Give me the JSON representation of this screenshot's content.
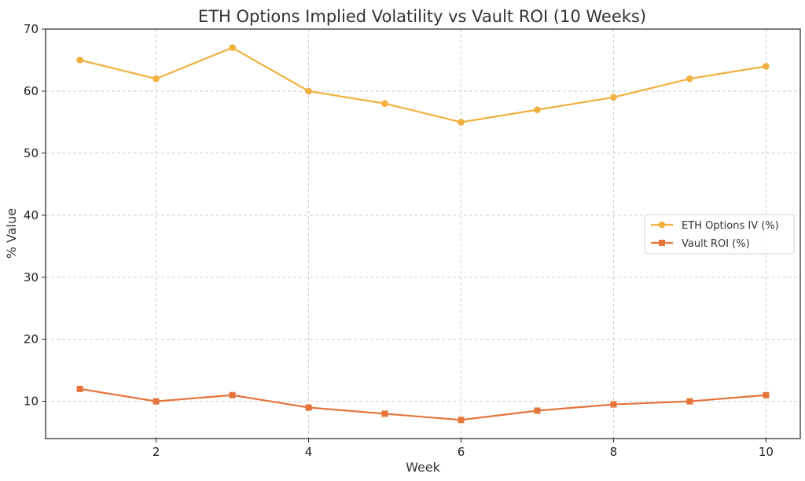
{
  "chart_data": {
    "type": "line",
    "title": "ETH Options Implied Volatility vs Vault ROI (10 Weeks)",
    "xlabel": "Week",
    "ylabel": "% Value",
    "x": [
      1,
      2,
      3,
      4,
      5,
      6,
      7,
      8,
      9,
      10
    ],
    "xlim": [
      0.55,
      10.45
    ],
    "ylim": [
      4,
      70
    ],
    "xticks": [
      2,
      4,
      6,
      8,
      10
    ],
    "yticks": [
      10,
      20,
      30,
      40,
      50,
      60,
      70
    ],
    "grid": true,
    "legend_position": "right",
    "series": [
      {
        "name": "ETH Options IV (%)",
        "values": [
          65,
          62,
          67,
          60,
          58,
          55,
          57,
          59,
          62,
          64
        ],
        "color": "#f0b13f",
        "marker": "circle"
      },
      {
        "name": "Vault ROI (%)",
        "values": [
          12,
          10,
          11,
          9,
          8,
          7,
          8.5,
          9.5,
          10,
          11
        ],
        "color": "#e4743a",
        "marker": "square"
      }
    ]
  }
}
